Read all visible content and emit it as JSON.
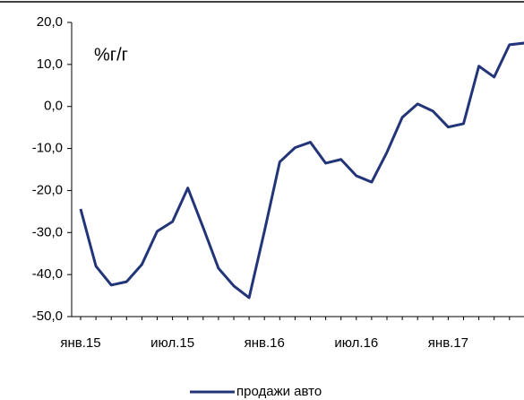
{
  "chart_data": {
    "type": "line",
    "annotation": "%г/г",
    "categories": [
      "янв.15",
      null,
      null,
      null,
      null,
      null,
      "июл.15",
      null,
      null,
      null,
      null,
      null,
      "янв.16",
      null,
      null,
      null,
      null,
      null,
      "июл.16",
      null,
      null,
      null,
      null,
      null,
      "янв.17",
      null,
      null,
      null,
      null,
      null
    ],
    "series": [
      {
        "name": "продажи авто",
        "color": "#233579",
        "values": [
          -24.4,
          -38,
          -42.5,
          -41.7,
          -37.6,
          -29.7,
          -27.4,
          -19.4,
          -28.8,
          -38.5,
          -42.7,
          -45.5,
          -29.7,
          -13.2,
          -9.8,
          -8.5,
          -13.5,
          -12.6,
          -16.5,
          -18,
          -10.9,
          -2.6,
          0.6,
          -1.1,
          -4.9,
          -4.1,
          9.6,
          7.0,
          14.7,
          15.1
        ]
      }
    ],
    "ylim": [
      -50,
      20
    ],
    "yticks": [
      {
        "value": -50,
        "label": "-50,0"
      },
      {
        "value": -40,
        "label": "-40,0"
      },
      {
        "value": -30,
        "label": "-30,0"
      },
      {
        "value": -20,
        "label": "-20,0"
      },
      {
        "value": -10,
        "label": "-10,0"
      },
      {
        "value": 0,
        "label": "0,0"
      },
      {
        "value": 10,
        "label": "10,0"
      },
      {
        "value": 20,
        "label": "20,0"
      }
    ],
    "grid": false,
    "legend": "bottom"
  }
}
